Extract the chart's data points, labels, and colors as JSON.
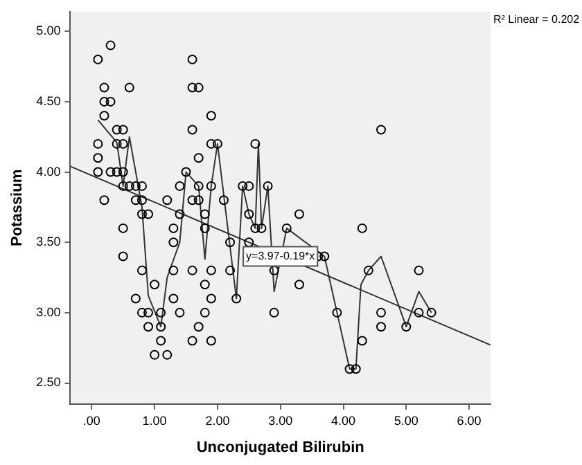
{
  "chart_data": {
    "type": "scatter",
    "xlabel": "Unconjugated Bilirubin",
    "ylabel": "Potassium",
    "xlim": [
      -0.34,
      6.34
    ],
    "xticks": [
      {
        "value": 0,
        "label": ".00"
      },
      {
        "value": 1,
        "label": "1.00"
      },
      {
        "value": 2,
        "label": "2.00"
      },
      {
        "value": 3,
        "label": "3.00"
      },
      {
        "value": 4,
        "label": "4.00"
      },
      {
        "value": 5,
        "label": "5.00"
      },
      {
        "value": 6,
        "label": "6.00"
      }
    ],
    "ylim": [
      2.35,
      5.14
    ],
    "yticks": [
      {
        "value": 2.5,
        "label": "2.50"
      },
      {
        "value": 3,
        "label": "3.00"
      },
      {
        "value": 3.5,
        "label": "3.50"
      },
      {
        "value": 4,
        "label": "4.00"
      },
      {
        "value": 4.5,
        "label": "4.50"
      },
      {
        "value": 5,
        "label": "5.00"
      }
    ],
    "grid": false,
    "legend": false,
    "marker": "circle",
    "series": [
      {
        "type": "scatter",
        "color": "#000000",
        "x": [
          0.1,
          0.3,
          0.2,
          0.2,
          0.3,
          0.2,
          0.4,
          0.5,
          0.1,
          0.4,
          0.5,
          0.1,
          0.1,
          0.3,
          0.4,
          0.5,
          0.6,
          0.2,
          0.5,
          0.6,
          0.7,
          0.8,
          0.7,
          0.8,
          0.8,
          0.9,
          0.5,
          1.2,
          1.6,
          1.6,
          1.7,
          1.6,
          1.9,
          1.9,
          2.0,
          1.7,
          1.5,
          1.4,
          1.6,
          1.7,
          1.9,
          1.7,
          2.1,
          1.4,
          1.8,
          1.3,
          1.8,
          2.4,
          2.5,
          2.5,
          2.6,
          2.7,
          2.6,
          2.8,
          3.1,
          4.6,
          3.3,
          4.3,
          0.5,
          0.8,
          1.0,
          0.7,
          0.8,
          0.9,
          0.9,
          1.1,
          1.1,
          1.1,
          1.0,
          1.2,
          1.3,
          1.3,
          1.3,
          1.4,
          1.6,
          1.8,
          1.9,
          1.9,
          1.8,
          1.7,
          1.6,
          1.9,
          2.2,
          2.2,
          2.3,
          2.5,
          2.9,
          2.9,
          3.3,
          3.6,
          3.7,
          3.9,
          4.1,
          4.2,
          4.3,
          4.4,
          4.6,
          4.6,
          5.0,
          5.2,
          5.2,
          5.4
        ],
        "values": [
          4.8,
          4.9,
          4.6,
          4.5,
          4.5,
          4.4,
          4.3,
          4.3,
          4.2,
          4.2,
          4.2,
          4.1,
          4.0,
          4.0,
          4.0,
          4.0,
          4.6,
          3.8,
          3.9,
          3.9,
          3.9,
          3.9,
          3.8,
          3.8,
          3.7,
          3.7,
          3.6,
          3.8,
          4.8,
          4.6,
          4.6,
          4.3,
          4.4,
          4.2,
          4.2,
          4.1,
          4.0,
          3.9,
          3.8,
          3.8,
          3.9,
          3.9,
          3.8,
          3.7,
          3.7,
          3.6,
          3.6,
          3.9,
          3.9,
          3.7,
          3.6,
          3.6,
          4.2,
          3.9,
          3.6,
          4.3,
          3.7,
          3.6,
          3.4,
          3.3,
          3.2,
          3.1,
          3.0,
          3.0,
          2.9,
          3.0,
          2.9,
          2.8,
          2.7,
          2.7,
          3.5,
          3.3,
          3.1,
          3.0,
          3.3,
          3.2,
          3.3,
          3.1,
          3.0,
          2.9,
          2.8,
          2.8,
          3.5,
          3.3,
          3.1,
          3.5,
          3.0,
          3.3,
          3.2,
          3.4,
          3.4,
          3.0,
          2.6,
          2.6,
          2.8,
          3.3,
          3.0,
          2.9,
          2.9,
          3.3,
          3.0,
          3.0
        ]
      },
      {
        "type": "line",
        "marker": "none",
        "color": "#333333",
        "x": [
          -0.34,
          6.34
        ],
        "values": [
          4.04,
          2.77
        ]
      },
      {
        "type": "line",
        "marker": "none",
        "color": "#333333",
        "x": [
          0.1,
          0.4,
          0.5,
          0.6,
          0.8,
          0.9,
          1.1,
          1.2,
          1.4,
          1.5,
          1.7,
          1.8,
          1.9,
          2.0,
          2.3,
          2.4,
          2.5,
          2.6,
          2.65,
          2.7,
          2.8,
          2.9,
          3.1,
          3.7,
          3.9,
          4.1,
          4.2,
          4.28,
          4.4,
          4.6,
          5.0,
          5.2,
          5.4
        ],
        "values": [
          4.37,
          4.21,
          3.9,
          4.25,
          3.75,
          3.12,
          2.9,
          3.25,
          3.5,
          4.0,
          3.9,
          3.38,
          3.9,
          4.2,
          3.1,
          3.9,
          3.7,
          3.6,
          4.2,
          3.6,
          3.9,
          3.15,
          3.6,
          3.4,
          3.0,
          2.6,
          2.6,
          3.2,
          3.3,
          3.4,
          2.9,
          3.15,
          3.0
        ]
      }
    ],
    "annotations": [
      "R² Linear = 0.202",
      {
        "text": "y=3.97-0.19*x",
        "x": 3.0,
        "y": 3.4
      }
    ]
  }
}
